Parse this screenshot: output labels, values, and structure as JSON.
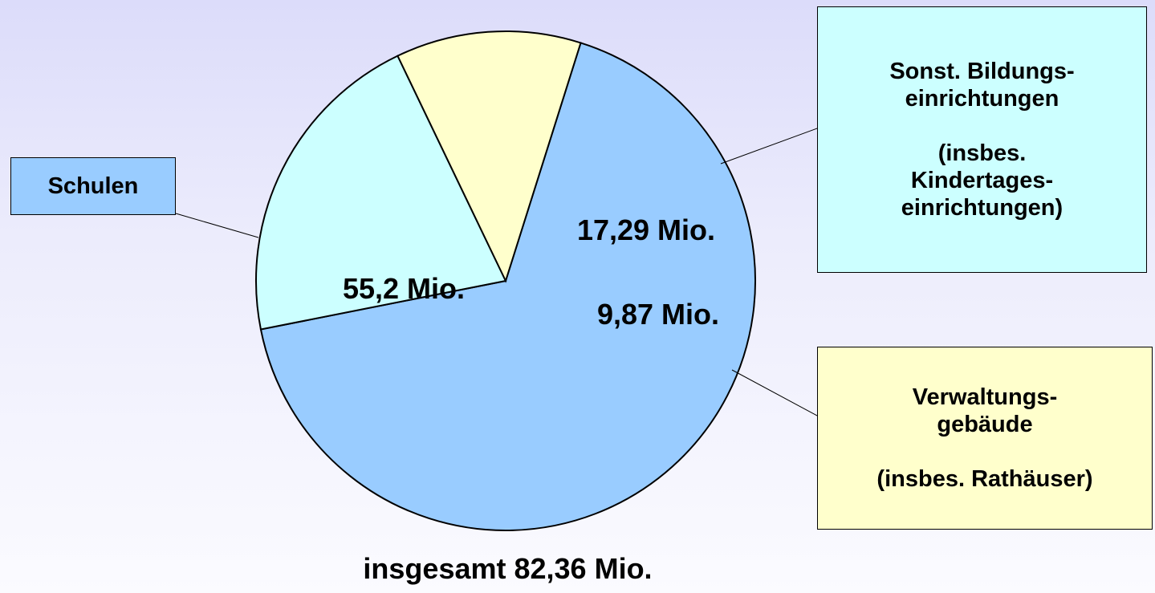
{
  "chart_data": {
    "type": "pie",
    "unit": "Mio.",
    "total_label": "insgesamt 82,36 Mio.",
    "slices": [
      {
        "value": 55.2,
        "value_label": "55,2 Mio.",
        "color": "#99ccff",
        "legend_lines": [
          "Schulen"
        ]
      },
      {
        "value": 17.29,
        "value_label": "17,29 Mio.",
        "color": "#ccffff",
        "legend_lines": [
          "Sonst. Bildungs-",
          "einrichtungen",
          "",
          "(insbes.",
          "Kindertages-",
          "einrichtungen)"
        ]
      },
      {
        "value": 9.87,
        "value_label": "9,87 Mio.",
        "color": "#ffffcc",
        "legend_lines": [
          "Verwaltungs-",
          "gebäude",
          "",
          "(insbes. Rathäuser)"
        ]
      }
    ]
  }
}
